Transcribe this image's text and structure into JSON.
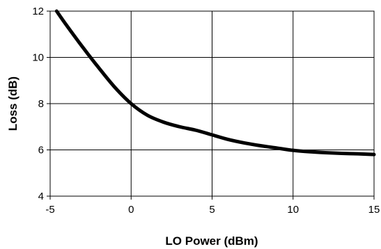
{
  "chart_data": {
    "type": "line",
    "title": "",
    "xlabel": "LO Power (dBm)",
    "ylabel": "Loss (dB)",
    "xlim": [
      -5,
      15
    ],
    "ylim": [
      4,
      12
    ],
    "x_ticks": [
      -5,
      0,
      5,
      10,
      15
    ],
    "y_ticks": [
      4,
      6,
      8,
      10,
      12
    ],
    "x_tick_labels": [
      "-5",
      "0",
      "5",
      "10",
      "15"
    ],
    "y_tick_labels": [
      "4",
      "6",
      "8",
      "10",
      "12"
    ],
    "grid": true,
    "legend": "none",
    "series": [
      {
        "color": "#000000",
        "x": [
          -4.6,
          -4,
          -3,
          -2,
          -1,
          0,
          1,
          2,
          3,
          4,
          5,
          6,
          7,
          8,
          9,
          10,
          11,
          12,
          13,
          14,
          15
        ],
        "y": [
          12.0,
          11.4,
          10.45,
          9.55,
          8.7,
          8.0,
          7.5,
          7.2,
          7.0,
          6.85,
          6.65,
          6.45,
          6.3,
          6.18,
          6.08,
          5.98,
          5.92,
          5.88,
          5.85,
          5.83,
          5.8
        ]
      }
    ]
  }
}
